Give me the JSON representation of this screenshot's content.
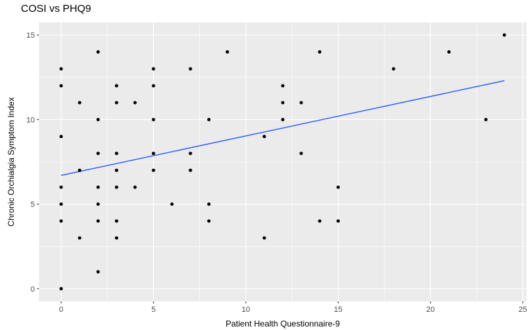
{
  "chart_data": {
    "type": "scatter",
    "title": "COSI vs PHQ9",
    "xlabel": "Patient Health Questionnaire-9",
    "ylabel": "Chronic Orchialgia Symptom Index",
    "xlim": [
      -1.2,
      25.2
    ],
    "ylim": [
      -0.75,
      15.75
    ],
    "x_ticks": [
      0,
      5,
      10,
      15,
      20,
      25
    ],
    "y_ticks": [
      0,
      5,
      10,
      15
    ],
    "grid": true,
    "points": [
      {
        "x": 0,
        "y": 13
      },
      {
        "x": 0,
        "y": 12
      },
      {
        "x": 0,
        "y": 9
      },
      {
        "x": 0,
        "y": 6
      },
      {
        "x": 0,
        "y": 5
      },
      {
        "x": 0,
        "y": 4
      },
      {
        "x": 0,
        "y": 0
      },
      {
        "x": 1,
        "y": 11
      },
      {
        "x": 1,
        "y": 7
      },
      {
        "x": 1,
        "y": 3
      },
      {
        "x": 2,
        "y": 14
      },
      {
        "x": 2,
        "y": 10
      },
      {
        "x": 2,
        "y": 8
      },
      {
        "x": 2,
        "y": 6
      },
      {
        "x": 2,
        "y": 5
      },
      {
        "x": 2,
        "y": 4
      },
      {
        "x": 2,
        "y": 1
      },
      {
        "x": 3,
        "y": 12
      },
      {
        "x": 3,
        "y": 11
      },
      {
        "x": 3,
        "y": 8
      },
      {
        "x": 3,
        "y": 7
      },
      {
        "x": 3,
        "y": 6
      },
      {
        "x": 3,
        "y": 4
      },
      {
        "x": 3,
        "y": 3
      },
      {
        "x": 4,
        "y": 11
      },
      {
        "x": 4,
        "y": 6
      },
      {
        "x": 5,
        "y": 13
      },
      {
        "x": 5,
        "y": 12
      },
      {
        "x": 5,
        "y": 10
      },
      {
        "x": 5,
        "y": 8
      },
      {
        "x": 5,
        "y": 7
      },
      {
        "x": 6,
        "y": 5
      },
      {
        "x": 7,
        "y": 13
      },
      {
        "x": 7,
        "y": 8
      },
      {
        "x": 7,
        "y": 7
      },
      {
        "x": 8,
        "y": 10
      },
      {
        "x": 8,
        "y": 5
      },
      {
        "x": 8,
        "y": 4
      },
      {
        "x": 9,
        "y": 14
      },
      {
        "x": 11,
        "y": 9
      },
      {
        "x": 11,
        "y": 3
      },
      {
        "x": 12,
        "y": 12
      },
      {
        "x": 12,
        "y": 11
      },
      {
        "x": 12,
        "y": 10
      },
      {
        "x": 13,
        "y": 11
      },
      {
        "x": 13,
        "y": 8
      },
      {
        "x": 14,
        "y": 14
      },
      {
        "x": 14,
        "y": 4
      },
      {
        "x": 15,
        "y": 6
      },
      {
        "x": 15,
        "y": 4
      },
      {
        "x": 18,
        "y": 13
      },
      {
        "x": 21,
        "y": 14
      },
      {
        "x": 23,
        "y": 10
      },
      {
        "x": 24,
        "y": 15
      }
    ],
    "trend_line": {
      "x": [
        0,
        24
      ],
      "y": [
        6.7,
        12.3
      ]
    },
    "colors": {
      "panel_background": "#ebebeb",
      "grid_major": "#ffffff",
      "points": "#000000",
      "trend_line": "#3366ff"
    }
  }
}
